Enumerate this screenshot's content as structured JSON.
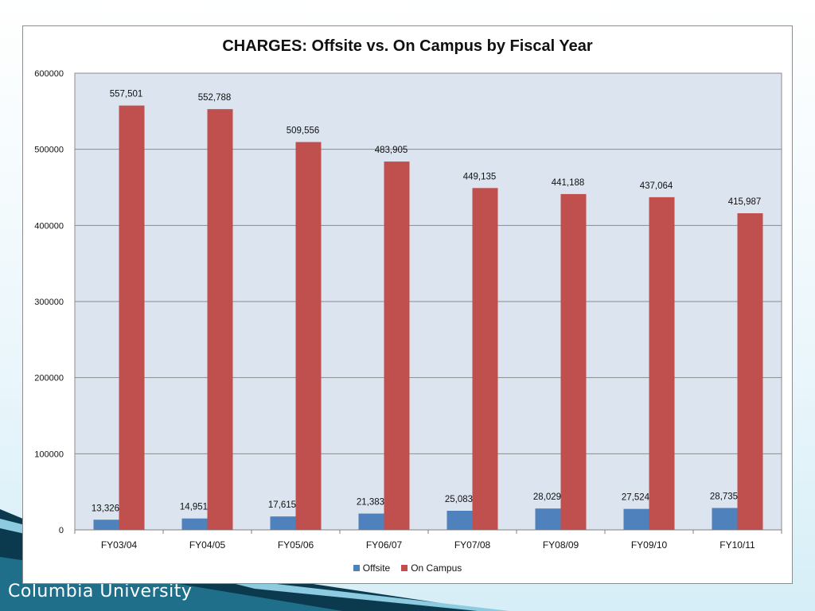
{
  "slide": {
    "footer_org": "Columbia University"
  },
  "colors": {
    "offsite": "#4f81bd",
    "on_campus": "#c0504d",
    "plot_bg": "#dbe4ef",
    "grid": "#8c8c8c"
  },
  "chart_data": {
    "type": "bar",
    "title": "CHARGES: Offsite vs. On Campus by Fiscal Year",
    "xlabel": "",
    "ylabel": "",
    "categories": [
      "FY03/04",
      "FY04/05",
      "FY05/06",
      "FY06/07",
      "FY07/08",
      "FY08/09",
      "FY09/10",
      "FY10/11"
    ],
    "series": [
      {
        "name": "Offsite",
        "values": [
          13326,
          14951,
          17615,
          21383,
          25083,
          28029,
          27524,
          28735
        ],
        "labels": [
          "13,326",
          "14,951",
          "17,615",
          "21,383",
          "25,083",
          "28,029",
          "27,524",
          "28,735"
        ]
      },
      {
        "name": "On Campus",
        "values": [
          557501,
          552788,
          509556,
          483905,
          449135,
          441188,
          437064,
          415987
        ],
        "labels": [
          "557,501",
          "552,788",
          "509,556",
          "483,905",
          "449,135",
          "441,188",
          "437,064",
          "415,987"
        ]
      }
    ],
    "ylim": [
      0,
      600000
    ],
    "yticks": [
      "0",
      "100000",
      "200000",
      "300000",
      "400000",
      "500000",
      "600000"
    ],
    "grid": true,
    "legend": "bottom"
  }
}
